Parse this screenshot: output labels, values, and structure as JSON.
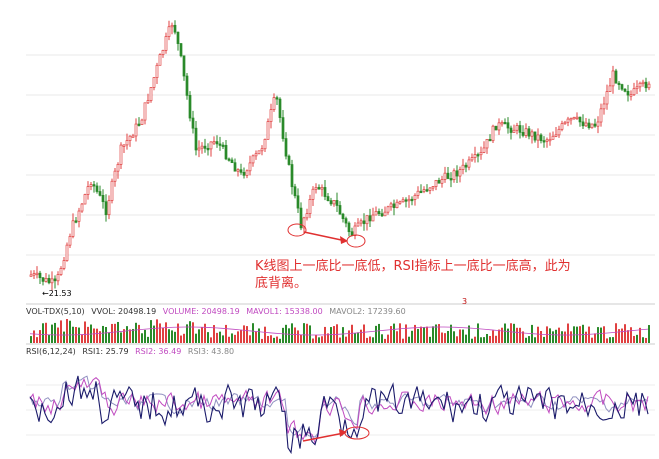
{
  "annotation": {
    "text": "K线图上一底比一底低，RSI指标上一底比一底高，此为底背离。"
  },
  "price_panel": {
    "low_marker": "←21.53",
    "event_marker": "3"
  },
  "volume_panel": {
    "header": {
      "name": "VOL-TDX(5,10)",
      "vvol": "VVOL: 20498.19",
      "volume": "VOLUME: 20498.19",
      "mavol1": "MAVOL1: 15338.00",
      "mavol2": "MAVOL2: 17239.60"
    }
  },
  "rsi_panel": {
    "header": {
      "name": "RSI(6,12,24)",
      "rsi1": "RSI1: 25.79",
      "rsi2": "RSI2: 36.49",
      "rsi3": "RSI3: 43.80"
    }
  },
  "colors": {
    "up": "#e04040",
    "down": "#2a8a2a",
    "annotation": "#e03030",
    "rsi1": "#1a1a6a",
    "rsi2": "#c04ac0",
    "rsi3": "#9090c0"
  }
}
